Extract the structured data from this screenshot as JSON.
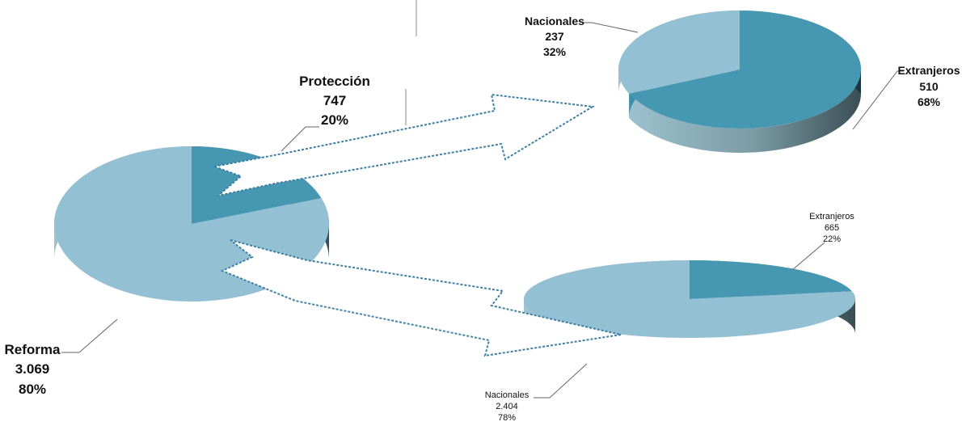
{
  "colors": {
    "dark_teal": "#4698B2",
    "light_blue": "#93C1D3",
    "side_light_start": "#9FC4D2",
    "side_light_end": "#3A4F55",
    "side_dark_start": "#3E8EA8",
    "side_dark_end": "#1C3540"
  },
  "chart_data": [
    {
      "type": "pie",
      "style": "3d",
      "labels": [
        "Protección",
        "Reforma"
      ],
      "values": [
        747,
        3069
      ],
      "value_labels": [
        "747",
        "3.069"
      ],
      "percents": [
        "20%",
        "80%"
      ],
      "colors": [
        "#4698B2",
        "#93C1D3"
      ]
    },
    {
      "type": "pie",
      "style": "3d",
      "labels": [
        "Nacionales",
        "Extranjeros"
      ],
      "values": [
        237,
        510
      ],
      "value_labels": [
        "237",
        "510"
      ],
      "percents": [
        "32%",
        "68%"
      ],
      "colors": [
        "#93C1D3",
        "#4698B2"
      ]
    },
    {
      "type": "pie",
      "style": "3d",
      "labels": [
        "Extranjeros",
        "Nacionales"
      ],
      "values": [
        665,
        2404
      ],
      "value_labels": [
        "665",
        "2.404"
      ],
      "percents": [
        "22%",
        "78%"
      ],
      "colors": [
        "#4698B2",
        "#93C1D3"
      ]
    }
  ],
  "arrows": [
    "exploded-arrow-proteccion",
    "exploded-arrow-reforma"
  ]
}
